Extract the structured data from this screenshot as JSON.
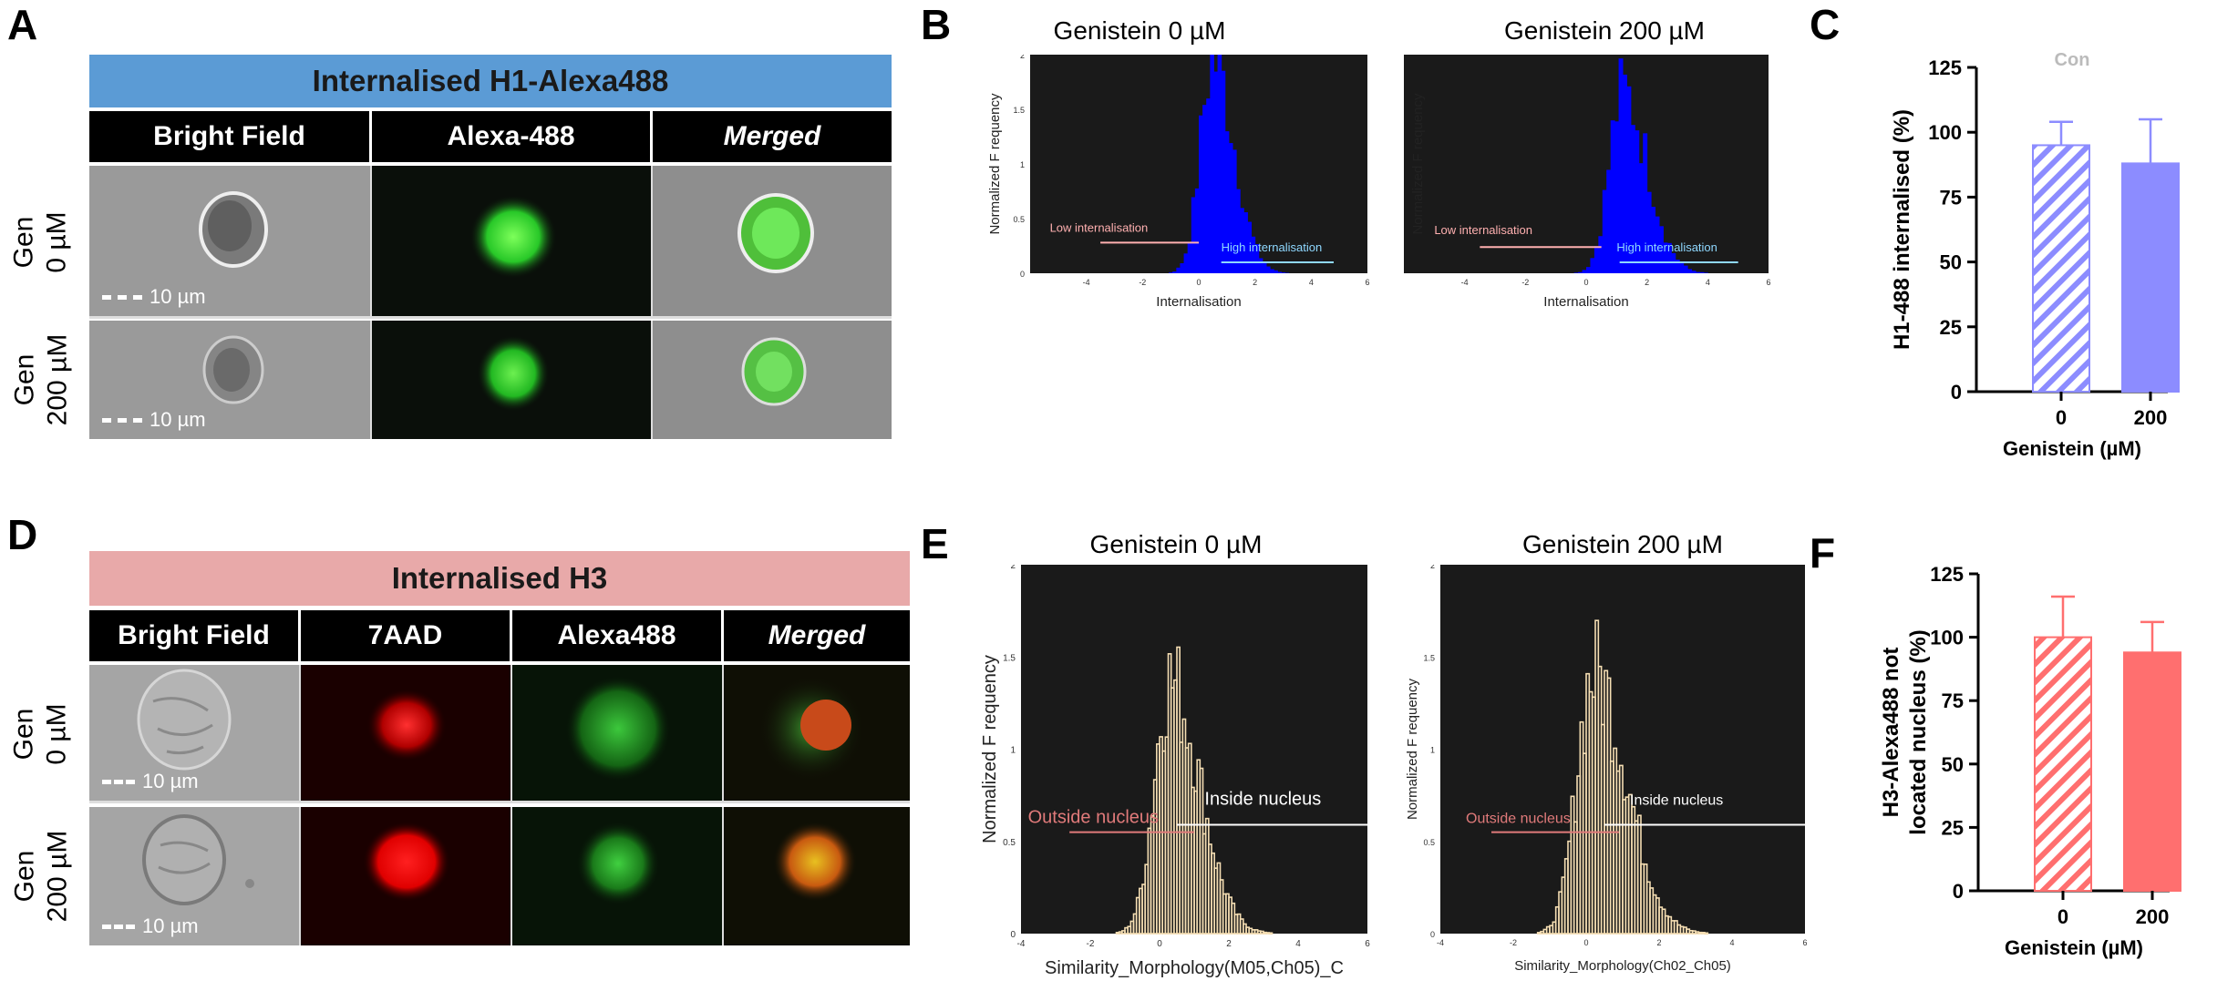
{
  "panels": {
    "A": "A",
    "B": "B",
    "C": "C",
    "D": "D",
    "E": "E",
    "F": "F"
  },
  "colors": {
    "a_band": "#5b9bd5",
    "d_band": "#e8a9a9",
    "hist_b": "#0000ff",
    "hist_e": "#f5deb3",
    "bar_c": "#8c8cff",
    "bar_f": "#ff6f6f",
    "plot_bg": "#1a1a1a"
  },
  "A": {
    "title": "Internalised H1-Alexa488",
    "headers": [
      "Bright Field",
      "Alexa-488",
      "Merged"
    ],
    "rows": [
      {
        "label1": "Gen",
        "label2": "0 µM",
        "scale": "10 µm"
      },
      {
        "label1": "Gen",
        "label2": "200 µM",
        "scale": "10 µm"
      }
    ]
  },
  "D": {
    "title": "Internalised H3",
    "headers": [
      "Bright Field",
      "7AAD",
      "Alexa488",
      "Merged"
    ],
    "rows": [
      {
        "label1": "Gen",
        "label2": "0 µM",
        "scale": "10 µm"
      },
      {
        "label1": "Gen",
        "label2": "200 µM",
        "scale": "10 µm"
      }
    ]
  },
  "B": {
    "left": {
      "title": "Genistein 0 µM",
      "xlabel": "Internalisation",
      "ylabel": "Normalized F requency",
      "low": "Low internalisation",
      "high": "High internalisation"
    },
    "right": {
      "title": "Genistein 200 µM",
      "xlabel": "Internalisation",
      "ylabel": "Normalized F requency",
      "low": "Low internalisation",
      "high": "High internalisation"
    }
  },
  "E": {
    "left": {
      "title": "Genistein 0 µM",
      "xlabel": "Similarity_Morphology(M05,Ch05)_C",
      "ylabel": "Normalized F requency",
      "low": "Outside nucleus",
      "high": "Inside nucleus"
    },
    "right": {
      "title": "Genistein 200 µM",
      "xlabel": "Similarity_Morphology(Ch02_Ch05)",
      "ylabel": "Normalized F requency",
      "low": "Outside nucleus",
      "high": "Inside nucleus"
    }
  },
  "chart_data": [
    {
      "type": "area",
      "panel": "B",
      "series": [
        {
          "name": "Genistein 0 µM",
          "peak_x": 0.5,
          "peak_y": 2.0
        },
        {
          "name": "Genistein 200 µM",
          "peak_x": 1.2,
          "peak_y": 1.7
        }
      ],
      "xlim": [
        -6,
        6
      ],
      "ylim": [
        0,
        2
      ],
      "xticks": [
        "-4",
        "-2",
        "0",
        "2",
        "4",
        "6"
      ],
      "yticks": [
        "0",
        "0.5",
        "1",
        "1.5",
        "2"
      ],
      "xlabel": "Internalisation",
      "ylabel": "Normalized F requency"
    },
    {
      "type": "bar",
      "panel": "C",
      "categories": [
        "0",
        "200"
      ],
      "values": [
        95,
        88
      ],
      "errors": [
        9,
        17
      ],
      "ylim": [
        0,
        125
      ],
      "yticks": [
        "0",
        "25",
        "50",
        "75",
        "100",
        "125"
      ],
      "xlabel": "Genistein (µM)",
      "ylabel": "H1-488 internalised (%)",
      "title": "Con"
    },
    {
      "type": "area",
      "panel": "E",
      "series": [
        {
          "name": "Genistein 0 µM",
          "peak_x": 0.3,
          "peak_y": 1.4
        },
        {
          "name": "Genistein 200 µM",
          "peak_x": 0.2,
          "peak_y": 1.45
        }
      ],
      "xlim": [
        -4,
        6
      ],
      "ylim": [
        0,
        2
      ],
      "xticks": [
        "-4",
        "-2",
        "0",
        "2",
        "4",
        "6"
      ],
      "yticks": [
        "0",
        "0.5",
        "1",
        "1.5",
        "2"
      ],
      "ylabel": "Normalized F requency"
    },
    {
      "type": "bar",
      "panel": "F",
      "categories": [
        "0",
        "200"
      ],
      "values": [
        100,
        94
      ],
      "errors": [
        16,
        12
      ],
      "ylim": [
        0,
        125
      ],
      "yticks": [
        "0",
        "25",
        "50",
        "75",
        "100",
        "125"
      ],
      "xlabel": "Genistein (µM)",
      "ylabel": "H3-Alexa488 not located nucleus  (%)"
    }
  ]
}
